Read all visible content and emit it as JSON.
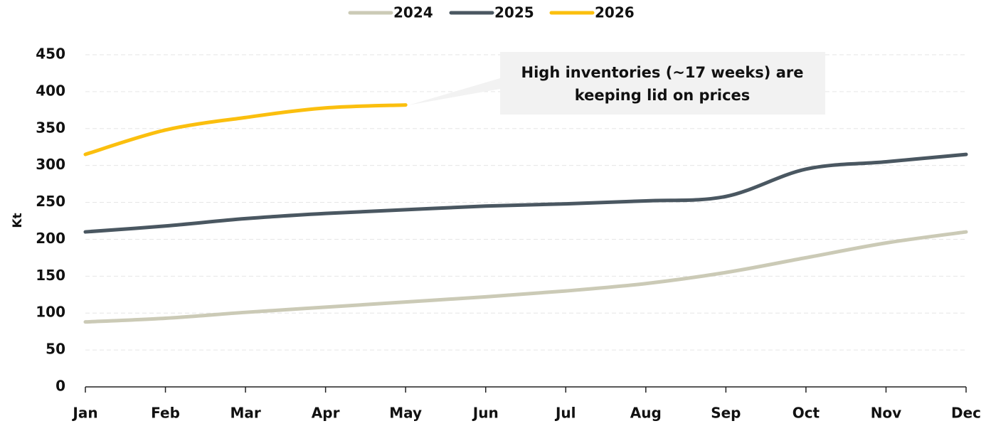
{
  "chart_data": {
    "type": "line",
    "y_label": "Kt",
    "annotation": [
      "High inventories (~17 weeks) are",
      "keeping lid on prices"
    ],
    "categories": [
      "Jan",
      "Feb",
      "Mar",
      "Apr",
      "May",
      "Jun",
      "Jul",
      "Aug",
      "Sep",
      "Oct",
      "Nov",
      "Dec"
    ],
    "series": [
      {
        "name": "2024",
        "color": "#cbcab6",
        "values": [
          88,
          93,
          101,
          108,
          115,
          122,
          130,
          140,
          155,
          175,
          195,
          210
        ]
      },
      {
        "name": "2025",
        "color": "#4a5761",
        "values": [
          210,
          218,
          228,
          235,
          240,
          245,
          248,
          252,
          258,
          295,
          305,
          315
        ]
      },
      {
        "name": "2026",
        "color": "#fbbf0e",
        "values": [
          315,
          348,
          365,
          378,
          382,
          null,
          null,
          null,
          null,
          null,
          null,
          null
        ]
      }
    ],
    "ylim": [
      0,
      450
    ],
    "yticks": [
      0,
      50,
      100,
      150,
      200,
      250,
      300,
      350,
      400,
      450
    ],
    "grid": true,
    "legend": "top"
  }
}
